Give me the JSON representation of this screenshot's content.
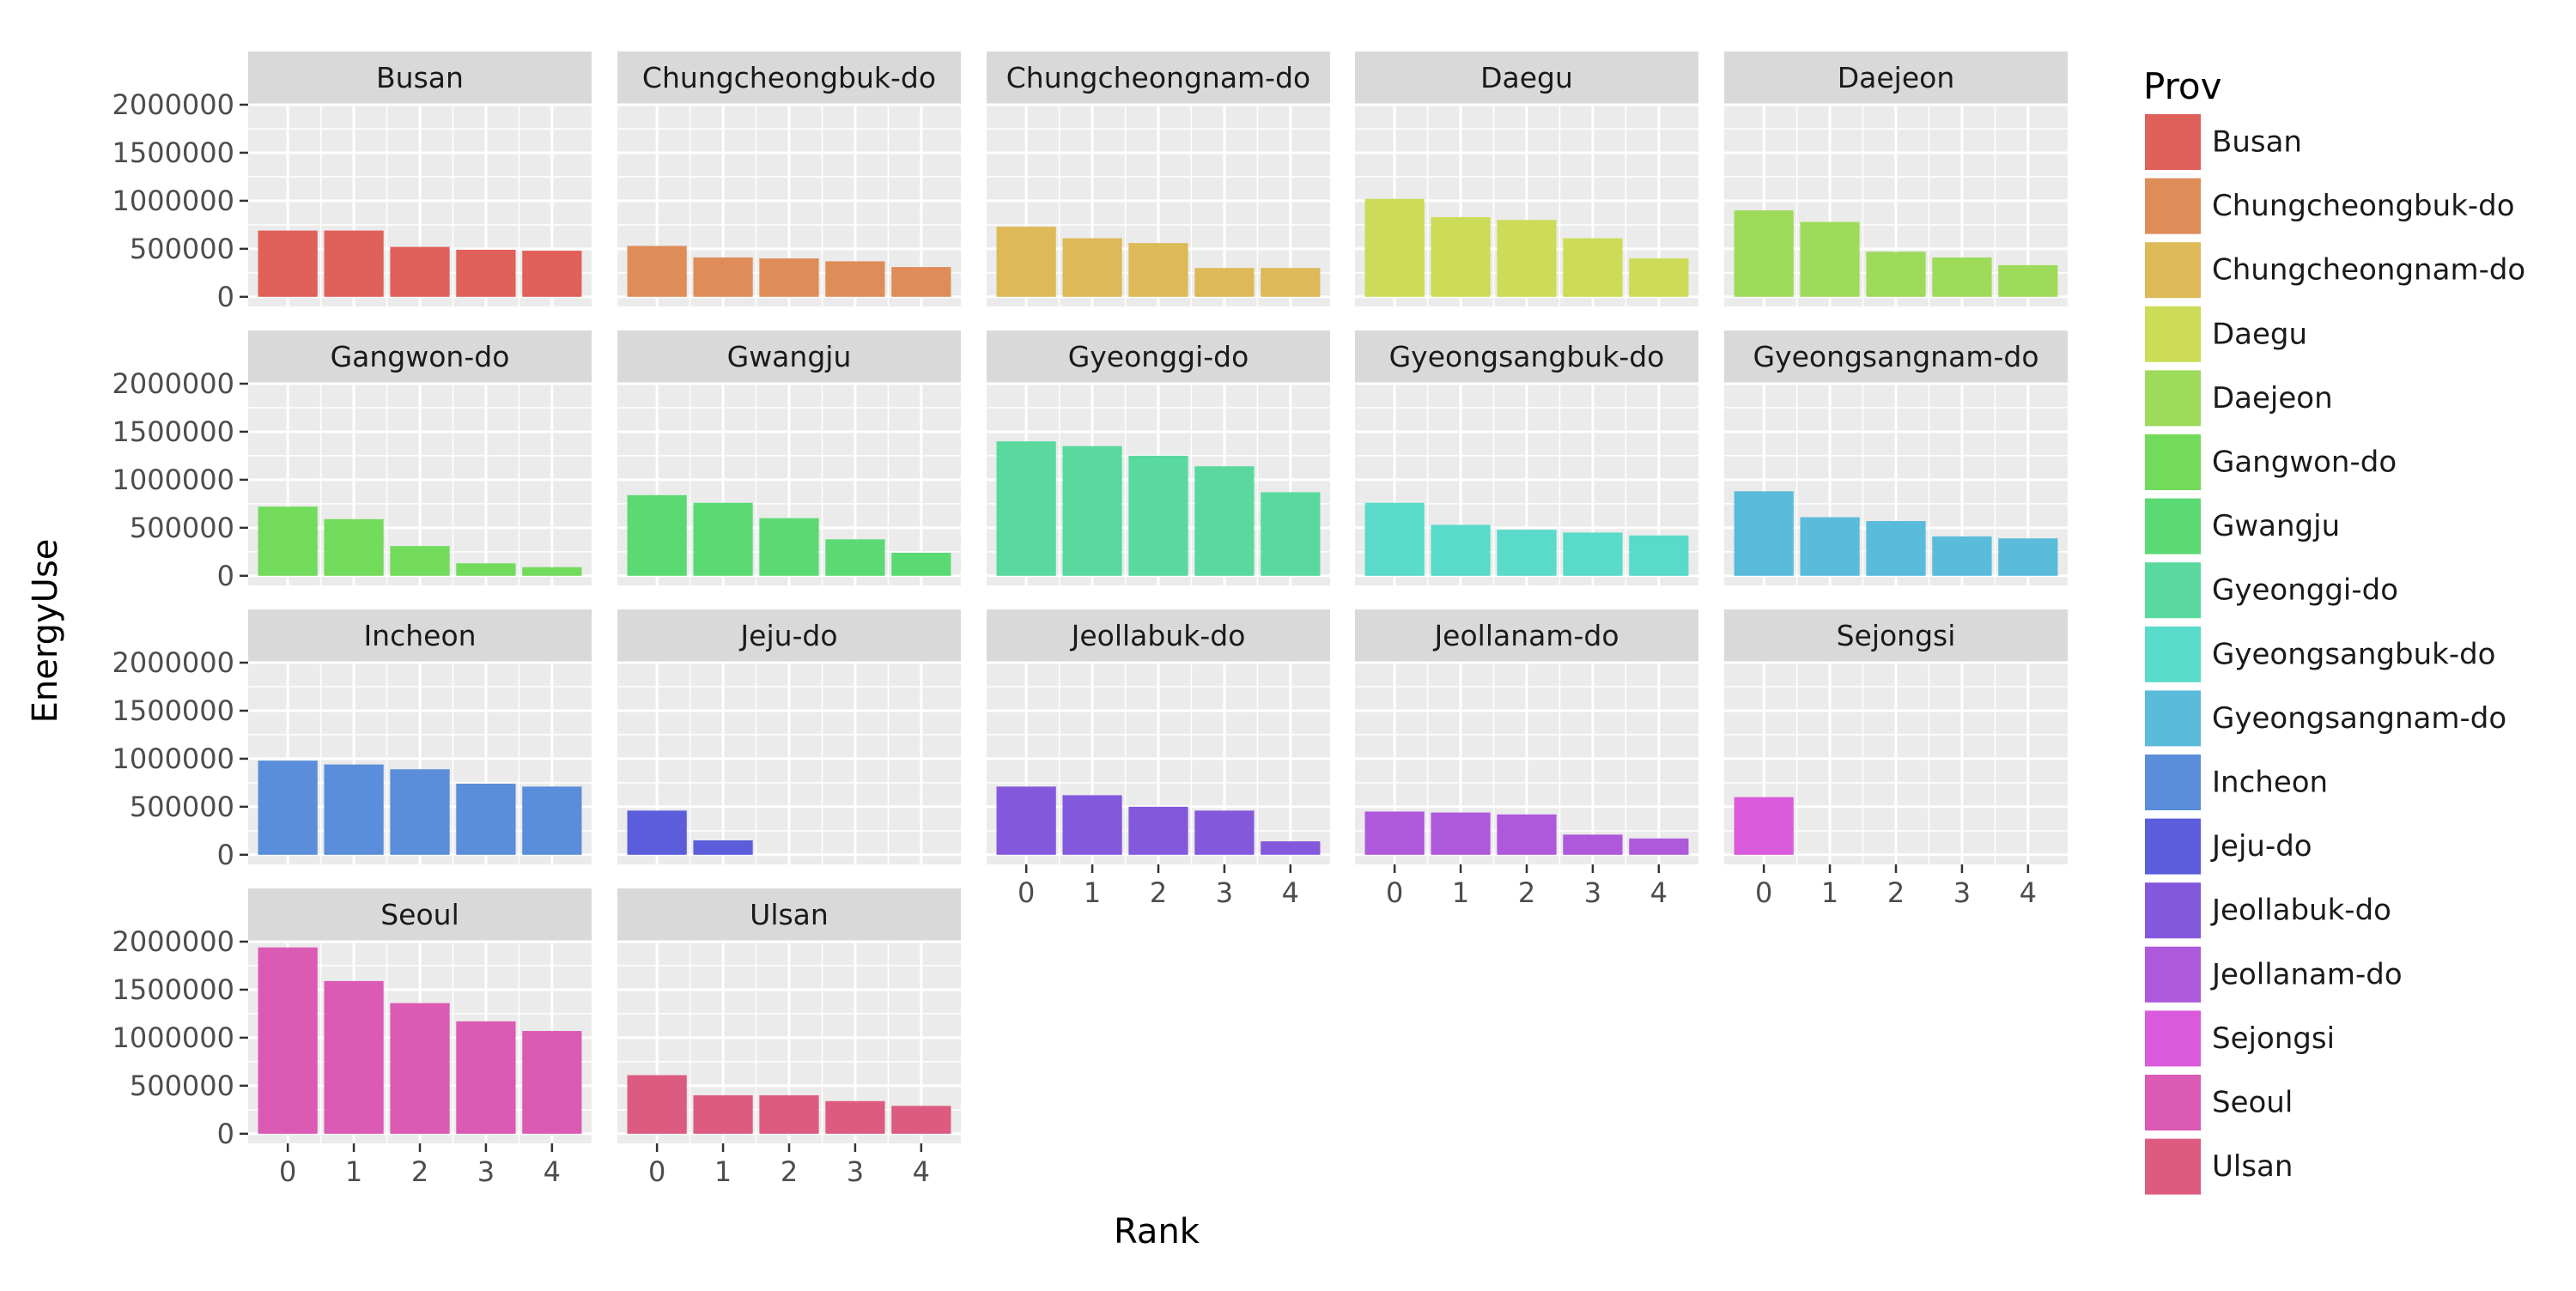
{
  "chart_data": {
    "type": "bar",
    "facet_by": "Prov",
    "x_label": "Rank",
    "y_label": "EnergyUse",
    "x_ticks": [
      "0",
      "1",
      "2",
      "3",
      "4"
    ],
    "y_ticks": [
      "0",
      "500000",
      "1000000",
      "1500000",
      "2000000"
    ],
    "y_range": [
      -100000,
      2000000
    ],
    "legend_title": "Prov",
    "legend_position": "right",
    "grid": true,
    "panels": [
      {
        "name": "Busan",
        "color": "#E0605A",
        "values": [
          690000,
          690000,
          520000,
          490000,
          480000
        ]
      },
      {
        "name": "Chungcheongbuk-do",
        "color": "#DE8D58",
        "values": [
          530000,
          410000,
          400000,
          370000,
          310000
        ]
      },
      {
        "name": "Chungcheongnam-do",
        "color": "#DDBA57",
        "values": [
          730000,
          610000,
          560000,
          300000,
          300000
        ]
      },
      {
        "name": "Daegu",
        "color": "#CCDB58",
        "values": [
          1020000,
          830000,
          800000,
          610000,
          400000
        ]
      },
      {
        "name": "Daejeon",
        "color": "#9FDB5A",
        "values": [
          900000,
          780000,
          470000,
          410000,
          330000
        ]
      },
      {
        "name": "Gangwon-do",
        "color": "#73DB5B",
        "values": [
          720000,
          590000,
          310000,
          130000,
          90000
        ]
      },
      {
        "name": "Gwangju",
        "color": "#5BDA73",
        "values": [
          840000,
          760000,
          600000,
          380000,
          240000
        ]
      },
      {
        "name": "Gyeonggi-do",
        "color": "#59D99E",
        "values": [
          1400000,
          1350000,
          1250000,
          1140000,
          870000
        ]
      },
      {
        "name": "Gyeongsangbuk-do",
        "color": "#59DACA",
        "values": [
          760000,
          530000,
          480000,
          450000,
          420000
        ]
      },
      {
        "name": "Gyeongsangnam-do",
        "color": "#5ABBDB",
        "values": [
          880000,
          610000,
          570000,
          410000,
          390000
        ]
      },
      {
        "name": "Incheon",
        "color": "#5A8DDA",
        "values": [
          980000,
          940000,
          890000,
          740000,
          710000
        ]
      },
      {
        "name": "Jeju-do",
        "color": "#5B5DDB",
        "values": [
          460000,
          150000
        ]
      },
      {
        "name": "Jeollabuk-do",
        "color": "#8458DC",
        "values": [
          710000,
          620000,
          500000,
          460000,
          140000
        ]
      },
      {
        "name": "Jeollanam-do",
        "color": "#AE58DC",
        "values": [
          450000,
          440000,
          420000,
          210000,
          170000
        ]
      },
      {
        "name": "Sejongsi",
        "color": "#DA5ADC",
        "values": [
          600000
        ]
      },
      {
        "name": "Seoul",
        "color": "#DB5AB3",
        "values": [
          1940000,
          1590000,
          1360000,
          1170000,
          1070000
        ]
      },
      {
        "name": "Ulsan",
        "color": "#DD5A80",
        "values": [
          610000,
          400000,
          400000,
          340000,
          290000
        ]
      }
    ]
  }
}
